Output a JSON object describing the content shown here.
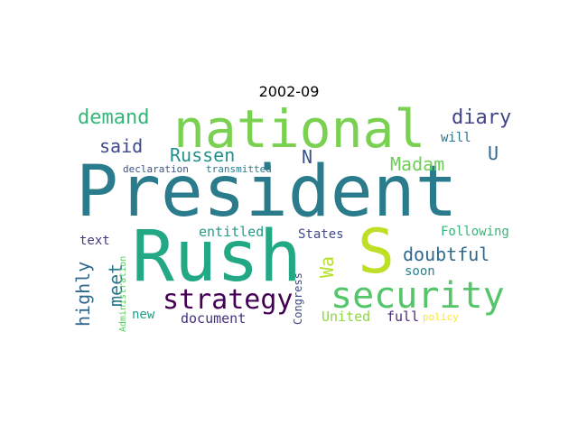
{
  "title": "2002-09",
  "words": {
    "president": {
      "text": "President",
      "color": "#2a7b8c"
    },
    "rush": {
      "text": "Rush",
      "color": "#22a884"
    },
    "national": {
      "text": "national",
      "color": "#7ad151"
    },
    "s": {
      "text": "S",
      "color": "#bddf26"
    },
    "security": {
      "text": "security",
      "color": "#54c568"
    },
    "strategy": {
      "text": "strategy",
      "color": "#440154"
    },
    "demand": {
      "text": "demand",
      "color": "#35b779"
    },
    "diary": {
      "text": "diary",
      "color": "#414487"
    },
    "said": {
      "text": "said",
      "color": "#3e4a89"
    },
    "russen": {
      "text": "Russen",
      "color": "#21918c"
    },
    "n": {
      "text": "N",
      "color": "#3b528b"
    },
    "madam": {
      "text": "Madam",
      "color": "#6ece58"
    },
    "u": {
      "text": "U",
      "color": "#31688e"
    },
    "will": {
      "text": "will",
      "color": "#2c728e"
    },
    "declaration": {
      "text": "declaration",
      "color": "#3b528b"
    },
    "transmitted": {
      "text": "transmitted",
      "color": "#2a788e"
    },
    "doubtful": {
      "text": "doubtful",
      "color": "#31688e"
    },
    "following": {
      "text": "Following",
      "color": "#35b779"
    },
    "entitled": {
      "text": "entitled",
      "color": "#1f9e89"
    },
    "states": {
      "text": "States",
      "color": "#3e4a89"
    },
    "text": {
      "text": "text",
      "color": "#453781"
    },
    "highly": {
      "text": "highly",
      "color": "#31688e"
    },
    "meet": {
      "text": "meet",
      "color": "#2a788e"
    },
    "wa": {
      "text": "Wa",
      "color": "#b5de2b"
    },
    "soon": {
      "text": "soon",
      "color": "#26828e"
    },
    "administration": {
      "text": "Administration",
      "color": "#5ec962"
    },
    "new": {
      "text": "new",
      "color": "#1f9e89"
    },
    "document": {
      "text": "document",
      "color": "#46327e"
    },
    "congress": {
      "text": "Congress",
      "color": "#3e4a89"
    },
    "united": {
      "text": "United",
      "color": "#8fd744"
    },
    "full": {
      "text": "full",
      "color": "#472d7b"
    },
    "policy": {
      "text": "policy",
      "color": "#fde725"
    }
  }
}
